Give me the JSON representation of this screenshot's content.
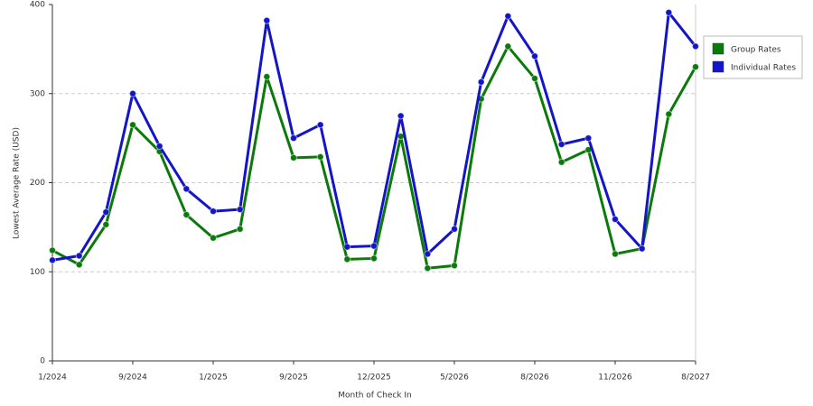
{
  "chart_data": {
    "type": "line",
    "x_label": "Month of Check In",
    "y_label": "Lowest Average Rate (USD)",
    "categories": [
      "1/2024",
      null,
      null,
      "9/2024",
      null,
      null,
      "1/2025",
      null,
      null,
      "9/2025",
      null,
      null,
      "12/2025",
      null,
      null,
      "5/2026",
      null,
      null,
      "8/2026",
      null,
      null,
      "11/2026",
      null,
      null,
      "8/2027"
    ],
    "series": [
      {
        "name": "Group Rates",
        "color": "#0a7a0a",
        "values": [
          124,
          108,
          153,
          265,
          235,
          164,
          138,
          148,
          319,
          228,
          229,
          114,
          115,
          252,
          104,
          107,
          294,
          353,
          317,
          223,
          237,
          120,
          126,
          277,
          330
        ]
      },
      {
        "name": "Individual Rates",
        "color": "#1414c8",
        "values": [
          113,
          118,
          167,
          300,
          241,
          193,
          168,
          170,
          382,
          250,
          265,
          128,
          129,
          275,
          120,
          148,
          313,
          387,
          342,
          243,
          250,
          159,
          126,
          391,
          353
        ]
      }
    ],
    "ylim": [
      0,
      400
    ],
    "yticks": [
      0,
      100,
      200,
      300,
      400
    ],
    "grid": true,
    "legend": "right"
  }
}
